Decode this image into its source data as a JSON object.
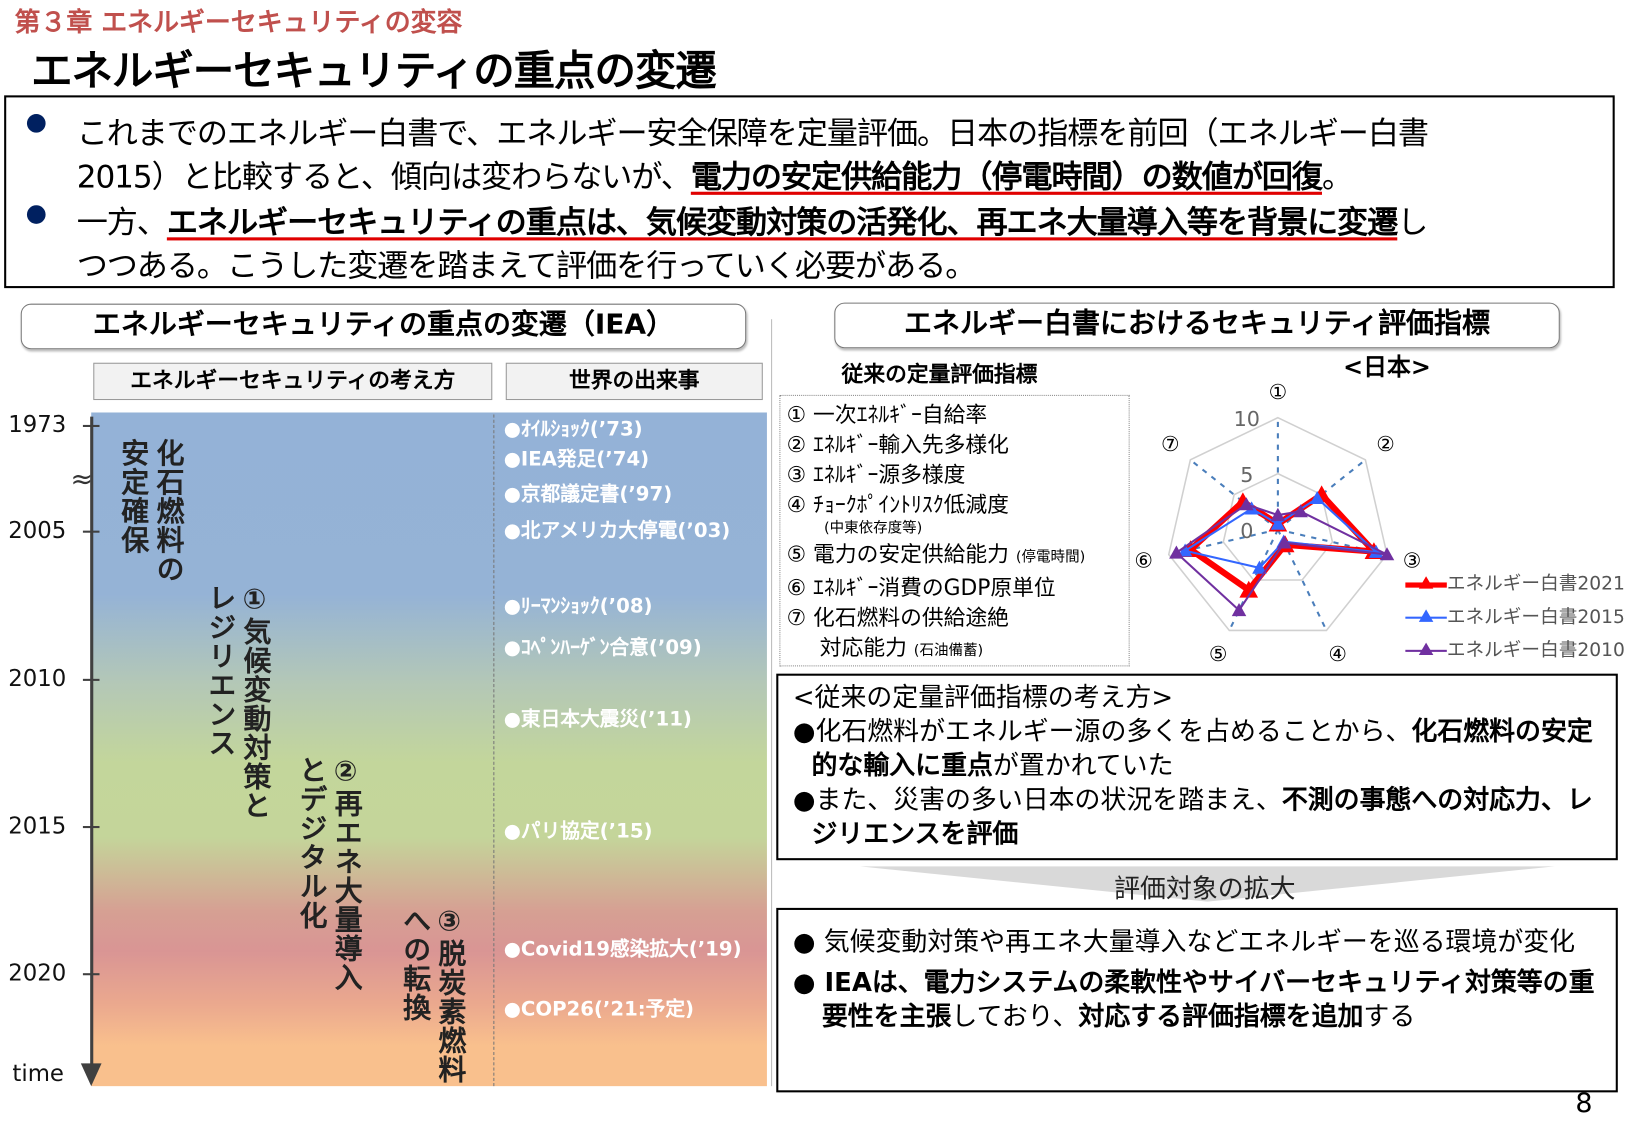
{
  "header": {
    "chapter": "第３章 エネルギーセキュリティの変容",
    "title": "エネルギーセキュリティの重点の変遷"
  },
  "summary": {
    "line1": "これまでのエネルギー白書で、エネルギー安全保障を定量評価。日本の指標を前回（エネルギー白書",
    "line2a": "2015）と比較すると、傾向は変わらないが、",
    "line2b": "電力の安定供給能力（停電時間）の数値が回復",
    "line2c": "。",
    "line3a": "一方、",
    "line3b": "エネルギーセキュリティの重点は、気候変動対策の活発化、再エネ大量導入等を背景に変遷",
    "line3c": "し",
    "line4": "つつある。こうした変遷を踏まえて評価を行っていく必要がある。"
  },
  "left": {
    "panel_title": "エネルギーセキュリティの重点の変遷（IEA）",
    "col1": "エネルギーセキュリティの考え方",
    "col2": "世界の出来事",
    "years": [
      "1973",
      "2005",
      "2010",
      "2015",
      "2020"
    ],
    "axis_label": "time",
    "phases": [
      {
        "a": "化石燃料の",
        "b": "安定確保"
      },
      {
        "a": "①気候変動対策と",
        "b": "レジリエンス"
      },
      {
        "a": "②再エネ大量導入",
        "b": "とデジタル化"
      },
      {
        "a": "③脱炭素燃料",
        "b": "への転換"
      }
    ],
    "events": [
      "●ｵｲﾙｼｮｯｸ(’73)",
      "●IEA発足(’74)",
      "●京都議定書(’97)",
      "●北アメリカ大停電(’03)",
      "●ﾘｰﾏﾝｼｮｯｸ(’08)",
      "●ｺﾍﾟﾝﾊｰｹﾞﾝ合意(’09)",
      "●東日本大震災(’11)",
      "●パリ協定(’15)",
      "●Covid19感染拡大(’19)",
      "●COP26(’21:予定)"
    ]
  },
  "right": {
    "panel_title": "エネルギー白書におけるセキュリティ評価指標",
    "sub_title": "従来の定量評価指標",
    "indicators": [
      "① 一次ｴﾈﾙｷﾞｰ自給率",
      "② ｴﾈﾙｷﾞｰ輸入先多様化",
      "③ ｴﾈﾙｷﾞｰ源多様度",
      "④ ﾁｮｰｸﾎﾟｲﾝﾄﾘｽｸ低減度",
      "⑤ 電力の安定供給能力",
      "⑥ ｴﾈﾙｷﾞｰ消費のGDP原単位",
      "⑦ 化石燃料の供給途絶",
      "対応能力"
    ],
    "indicator_notes": {
      "n4": "(中東依存度等)",
      "n5": "(停電時間)",
      "n7": "(石油備蓄)"
    },
    "box2": {
      "heading": "<従来の定量評価指標の考え方>",
      "b1a": "●化石燃料がエネルギー源の多くを占めることから、",
      "b1b": "化石燃料の安定的",
      "b1c": "な輸入に重点",
      "b1d": "が置かれていた",
      "b2a": "●また、災害の多い日本の状況を踏まえ、",
      "b2b": "不測の事態への対応",
      "b2c": "力、レジリエンスを評価"
    },
    "arrow_label": "評価対象の拡大",
    "box3": {
      "b1a": "● 気候変動対策や再エネ大量導入などエネルギーを巡る環境",
      "b1b": "が変化",
      "b2a": "● IEAは、電力システムの柔軟性やサイバーセキュリティ対策",
      "b2b": "等の重要性を主張",
      "b2c": "しており、",
      "b2d": "対応する評価指標を追加",
      "b2e": "する"
    }
  },
  "page_number": "8",
  "chart_data": {
    "type": "radar",
    "title": "<日本>",
    "axes": [
      "①",
      "②",
      "③",
      "④",
      "⑤",
      "⑥",
      "⑦"
    ],
    "tick_labels": [
      "0",
      "5",
      "10"
    ],
    "range": [
      0,
      10
    ],
    "legend_position": "right",
    "series": [
      {
        "name": "エネルギー白書2021",
        "color": "#ff0000",
        "values": [
          0.5,
          5,
          8.8,
          1.5,
          6,
          8,
          4
        ]
      },
      {
        "name": "エネルギー白書2015",
        "color": "#3366ff",
        "values": [
          0.5,
          4.5,
          9,
          1.2,
          3.8,
          8.5,
          3
        ]
      },
      {
        "name": "エネルギー白書2010",
        "color": "#7030a0",
        "values": [
          1.3,
          2.6,
          10,
          1.3,
          8,
          9.3,
          3.6
        ]
      }
    ]
  },
  "colors": {
    "chapter": "#c0504d",
    "bullet": "#002060",
    "underline": "#e00000"
  }
}
